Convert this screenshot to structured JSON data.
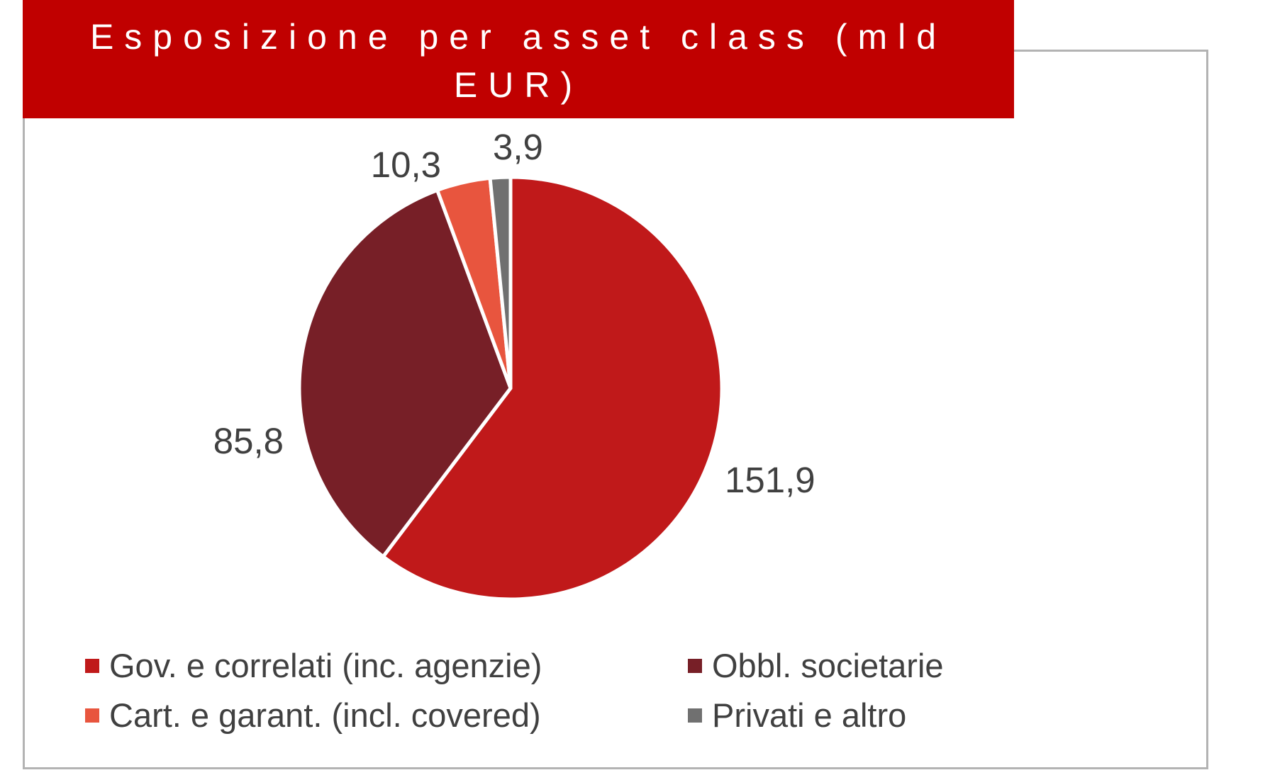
{
  "chart_data": {
    "type": "pie",
    "title": "Esposizione per asset class (mld EUR)",
    "categories": [
      "Gov. e correlati (inc. agenzie)",
      "Obbl. societarie",
      "Cart. e garant. (incl. covered)",
      "Privati e altro"
    ],
    "values": [
      151.9,
      85.8,
      10.3,
      3.9
    ],
    "data_labels": [
      "151,9",
      "85,8",
      "10,3",
      "3,9"
    ],
    "colors": [
      "#c0191a",
      "#771f27",
      "#e8553e",
      "#707070"
    ],
    "legend_position": "bottom"
  }
}
